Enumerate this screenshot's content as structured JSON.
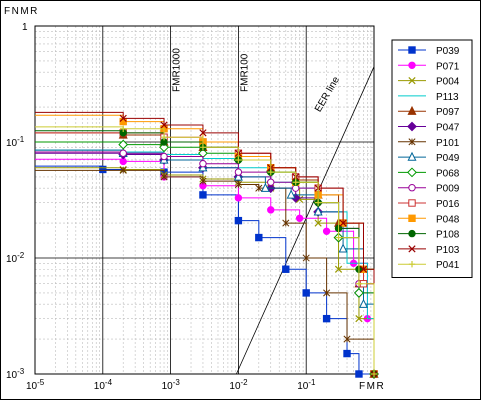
{
  "chart_data": {
    "type": "line",
    "title": "",
    "ylabel": "FNMR",
    "xlabel": "FMR",
    "x_scale": "log",
    "y_scale": "log",
    "xlim": [
      1e-05,
      1
    ],
    "ylim": [
      0.001,
      1
    ],
    "grid": true,
    "legend_position": "right",
    "x_ticks": [
      {
        "value": 1e-05,
        "base": "10",
        "exp": "-5"
      },
      {
        "value": 0.0001,
        "base": "10",
        "exp": "-4"
      },
      {
        "value": 0.001,
        "base": "10",
        "exp": "-3"
      },
      {
        "value": 0.01,
        "base": "10",
        "exp": "-2"
      },
      {
        "value": 0.1,
        "base": "10",
        "exp": "-1"
      }
    ],
    "y_ticks": [
      {
        "value": 1,
        "base": "1",
        "exp": ""
      },
      {
        "value": 0.1,
        "base": "10",
        "exp": "-1"
      },
      {
        "value": 0.01,
        "base": "10",
        "exp": "-2"
      },
      {
        "value": 0.001,
        "base": "10",
        "exp": "-3"
      }
    ],
    "reference_lines": [
      {
        "label": "FMR1000",
        "x": 0.001
      },
      {
        "label": "FMR100",
        "x": 0.01
      }
    ],
    "eer_line": {
      "label": "EER line"
    },
    "series": [
      {
        "name": "P039",
        "color": "#0033cc",
        "marker": "square",
        "points": [
          [
            1e-05,
            0.062
          ],
          [
            0.0001,
            0.058
          ],
          [
            0.0008,
            0.055
          ],
          [
            0.003,
            0.035
          ],
          [
            0.01,
            0.021
          ],
          [
            0.02,
            0.015
          ],
          [
            0.05,
            0.008
          ],
          [
            0.1,
            0.005
          ],
          [
            0.2,
            0.003
          ],
          [
            0.4,
            0.0015
          ],
          [
            0.6,
            0.001
          ],
          [
            1,
            0.001
          ]
        ]
      },
      {
        "name": "P071",
        "color": "#ff00ff",
        "marker": "circle",
        "points": [
          [
            1e-05,
            0.071
          ],
          [
            0.0002,
            0.068
          ],
          [
            0.0008,
            0.05
          ],
          [
            0.003,
            0.042
          ],
          [
            0.01,
            0.033
          ],
          [
            0.03,
            0.026
          ],
          [
            0.08,
            0.022
          ],
          [
            0.2,
            0.017
          ],
          [
            0.5,
            0.009
          ],
          [
            0.8,
            0.003
          ],
          [
            1,
            0.001
          ]
        ]
      },
      {
        "name": "P004",
        "color": "#999900",
        "marker": "x",
        "points": [
          [
            1e-05,
            0.06
          ],
          [
            0.0002,
            0.058
          ],
          [
            0.0008,
            0.052
          ],
          [
            0.003,
            0.048
          ],
          [
            0.01,
            0.045
          ],
          [
            0.03,
            0.04
          ],
          [
            0.08,
            0.032
          ],
          [
            0.15,
            0.02
          ],
          [
            0.3,
            0.008
          ],
          [
            0.6,
            0.003
          ],
          [
            1,
            0.001
          ]
        ]
      },
      {
        "name": "P113",
        "color": "#00cccc",
        "marker": "none",
        "points": [
          [
            1e-05,
            0.085
          ],
          [
            0.0002,
            0.082
          ],
          [
            0.0008,
            0.078
          ],
          [
            0.003,
            0.072
          ],
          [
            0.01,
            0.06
          ],
          [
            0.03,
            0.045
          ],
          [
            0.07,
            0.04
          ],
          [
            0.15,
            0.025
          ],
          [
            0.4,
            0.009
          ],
          [
            0.8,
            0.003
          ],
          [
            1,
            0.001
          ]
        ]
      },
      {
        "name": "P097",
        "color": "#993300",
        "marker": "triangle",
        "points": [
          [
            1e-05,
            0.12
          ],
          [
            0.0002,
            0.115
          ],
          [
            0.0008,
            0.1
          ],
          [
            0.003,
            0.09
          ],
          [
            0.01,
            0.075
          ],
          [
            0.03,
            0.06
          ],
          [
            0.07,
            0.047
          ],
          [
            0.15,
            0.035
          ],
          [
            0.3,
            0.02
          ],
          [
            0.6,
            0.006
          ],
          [
            1,
            0.001
          ]
        ]
      },
      {
        "name": "P047",
        "color": "#660099",
        "marker": "diamond",
        "points": [
          [
            1e-05,
            0.08
          ],
          [
            0.0002,
            0.078
          ],
          [
            0.0008,
            0.07
          ],
          [
            0.003,
            0.06
          ],
          [
            0.01,
            0.05
          ],
          [
            0.03,
            0.04
          ],
          [
            0.07,
            0.033
          ],
          [
            0.15,
            0.025
          ],
          [
            0.3,
            0.015
          ],
          [
            0.6,
            0.005
          ],
          [
            1,
            0.001
          ]
        ]
      },
      {
        "name": "P101",
        "color": "#663300",
        "marker": "asterisk",
        "points": [
          [
            1e-05,
            0.057
          ],
          [
            0.0002,
            0.057
          ],
          [
            0.0008,
            0.05
          ],
          [
            0.003,
            0.046
          ],
          [
            0.01,
            0.043
          ],
          [
            0.02,
            0.04
          ],
          [
            0.05,
            0.02
          ],
          [
            0.1,
            0.01
          ],
          [
            0.2,
            0.005
          ],
          [
            0.4,
            0.002
          ],
          [
            1,
            0.001
          ]
        ]
      },
      {
        "name": "P049",
        "color": "#006699",
        "marker": "triangle-open",
        "points": [
          [
            1e-05,
            0.085
          ],
          [
            0.0002,
            0.08
          ],
          [
            0.0008,
            0.07
          ],
          [
            0.003,
            0.06
          ],
          [
            0.01,
            0.05
          ],
          [
            0.025,
            0.04
          ],
          [
            0.06,
            0.035
          ],
          [
            0.15,
            0.025
          ],
          [
            0.35,
            0.012
          ],
          [
            0.7,
            0.004
          ],
          [
            1,
            0.001
          ]
        ]
      },
      {
        "name": "P068",
        "color": "#009900",
        "marker": "diamond-open",
        "points": [
          [
            1e-05,
            0.1
          ],
          [
            0.0002,
            0.095
          ],
          [
            0.0008,
            0.09
          ],
          [
            0.003,
            0.08
          ],
          [
            0.01,
            0.07
          ],
          [
            0.03,
            0.055
          ],
          [
            0.07,
            0.045
          ],
          [
            0.15,
            0.03
          ],
          [
            0.3,
            0.015
          ],
          [
            0.6,
            0.005
          ],
          [
            1,
            0.001
          ]
        ]
      },
      {
        "name": "P009",
        "color": "#990099",
        "marker": "circle-open",
        "points": [
          [
            1e-05,
            0.082
          ],
          [
            0.0002,
            0.08
          ],
          [
            0.0008,
            0.075
          ],
          [
            0.003,
            0.065
          ],
          [
            0.01,
            0.055
          ],
          [
            0.03,
            0.045
          ],
          [
            0.07,
            0.04
          ],
          [
            0.15,
            0.03
          ],
          [
            0.3,
            0.018
          ],
          [
            0.6,
            0.006
          ],
          [
            1,
            0.001
          ]
        ]
      },
      {
        "name": "P016",
        "color": "#cc3333",
        "marker": "square-open",
        "points": [
          [
            1e-05,
            0.12
          ],
          [
            0.0002,
            0.12
          ],
          [
            0.0008,
            0.11
          ],
          [
            0.003,
            0.1
          ],
          [
            0.01,
            0.08
          ],
          [
            0.03,
            0.06
          ],
          [
            0.07,
            0.05
          ],
          [
            0.15,
            0.04
          ],
          [
            0.35,
            0.02
          ],
          [
            0.7,
            0.006
          ],
          [
            1,
            0.001
          ]
        ]
      },
      {
        "name": "P048",
        "color": "#ff9900",
        "marker": "square",
        "points": [
          [
            1e-05,
            0.17
          ],
          [
            0.0002,
            0.15
          ],
          [
            0.0008,
            0.13
          ],
          [
            0.003,
            0.1
          ],
          [
            0.01,
            0.075
          ],
          [
            0.03,
            0.06
          ],
          [
            0.07,
            0.045
          ],
          [
            0.15,
            0.035
          ],
          [
            0.35,
            0.02
          ],
          [
            0.7,
            0.008
          ],
          [
            1,
            0.001
          ]
        ]
      },
      {
        "name": "P108",
        "color": "#006600",
        "marker": "circle",
        "points": [
          [
            1e-05,
            0.125
          ],
          [
            0.0002,
            0.12
          ],
          [
            0.0008,
            0.1
          ],
          [
            0.003,
            0.09
          ],
          [
            0.01,
            0.07
          ],
          [
            0.03,
            0.055
          ],
          [
            0.07,
            0.045
          ],
          [
            0.15,
            0.03
          ],
          [
            0.3,
            0.018
          ],
          [
            0.6,
            0.008
          ],
          [
            1,
            0.001
          ]
        ]
      },
      {
        "name": "P103",
        "color": "#990000",
        "marker": "x",
        "points": [
          [
            1e-05,
            0.18
          ],
          [
            0.0002,
            0.16
          ],
          [
            0.0008,
            0.14
          ],
          [
            0.003,
            0.12
          ],
          [
            0.01,
            0.08
          ],
          [
            0.03,
            0.06
          ],
          [
            0.07,
            0.05
          ],
          [
            0.15,
            0.04
          ],
          [
            0.35,
            0.02
          ],
          [
            0.7,
            0.008
          ],
          [
            1,
            0.001
          ]
        ]
      },
      {
        "name": "P041",
        "color": "#cccc33",
        "marker": "plus",
        "points": [
          [
            1e-05,
            0.135
          ],
          [
            0.0002,
            0.13
          ],
          [
            0.0008,
            0.11
          ],
          [
            0.003,
            0.09
          ],
          [
            0.01,
            0.07
          ],
          [
            0.03,
            0.055
          ],
          [
            0.07,
            0.045
          ],
          [
            0.15,
            0.03
          ],
          [
            0.3,
            0.015
          ],
          [
            0.6,
            0.006
          ],
          [
            1,
            0.001
          ]
        ]
      }
    ]
  }
}
